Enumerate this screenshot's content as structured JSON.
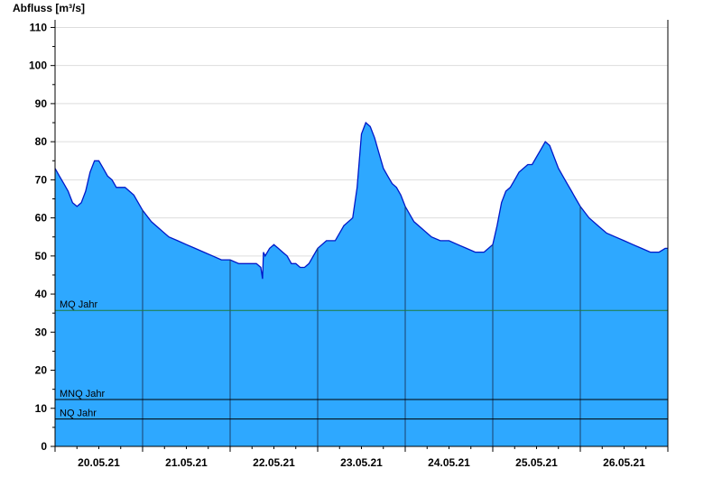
{
  "chart_data": {
    "type": "area",
    "ylabel": "Abfluss [m³/s]",
    "ylim": [
      0,
      112
    ],
    "yticks": [
      0,
      10,
      20,
      30,
      40,
      50,
      60,
      70,
      80,
      90,
      100,
      110
    ],
    "xlabels": [
      "20.05.21",
      "21.05.21",
      "22.05.21",
      "23.05.21",
      "24.05.21",
      "25.05.21",
      "26.05.21"
    ],
    "x": [
      0,
      0.05,
      0.1,
      0.15,
      0.2,
      0.25,
      0.3,
      0.35,
      0.4,
      0.45,
      0.5,
      0.55,
      0.6,
      0.65,
      0.7,
      0.75,
      0.8,
      0.85,
      0.9,
      0.95,
      1.0,
      1.1,
      1.2,
      1.3,
      1.4,
      1.5,
      1.6,
      1.7,
      1.8,
      1.9,
      2.0,
      2.1,
      2.2,
      2.3,
      2.35,
      2.37,
      2.38,
      2.4,
      2.45,
      2.5,
      2.55,
      2.6,
      2.65,
      2.7,
      2.75,
      2.8,
      2.85,
      2.9,
      3.0,
      3.1,
      3.2,
      3.3,
      3.4,
      3.45,
      3.5,
      3.55,
      3.6,
      3.65,
      3.7,
      3.75,
      3.8,
      3.85,
      3.9,
      3.95,
      4.0,
      4.1,
      4.2,
      4.3,
      4.4,
      4.5,
      4.6,
      4.7,
      4.8,
      4.9,
      5.0,
      5.05,
      5.1,
      5.15,
      5.2,
      5.25,
      5.3,
      5.35,
      5.4,
      5.45,
      5.5,
      5.55,
      5.6,
      5.65,
      5.7,
      5.75,
      5.8,
      5.85,
      5.9,
      5.95,
      6.0,
      6.1,
      6.2,
      6.3,
      6.4,
      6.5,
      6.6,
      6.7,
      6.8,
      6.9,
      6.97,
      7.0
    ],
    "series": [
      {
        "values": [
          73,
          71,
          69,
          67,
          64,
          63,
          64,
          67,
          72,
          75,
          75,
          73,
          71,
          70,
          68,
          68,
          68,
          67,
          66,
          64,
          62,
          59,
          57,
          55,
          54,
          53,
          52,
          51,
          50,
          49,
          49,
          48,
          48,
          48,
          47,
          44,
          51,
          50,
          52,
          53,
          52,
          51,
          50,
          48,
          48,
          47,
          47,
          48,
          52,
          54,
          54,
          58,
          60,
          68,
          82,
          85,
          84,
          81,
          77,
          73,
          71,
          69,
          68,
          66,
          63,
          59,
          57,
          55,
          54,
          54,
          53,
          52,
          51,
          51,
          53,
          58,
          64,
          67,
          68,
          70,
          72,
          73,
          74,
          74,
          76,
          78,
          80,
          79,
          76,
          73,
          71,
          69,
          67,
          65,
          63,
          60,
          58,
          56,
          55,
          54,
          53,
          52,
          51,
          51,
          52,
          52
        ]
      }
    ],
    "reference_lines": [
      {
        "label": "MQ Jahr",
        "value": 35.7,
        "color": "#1e7a3c"
      },
      {
        "label": "MNQ Jahr",
        "value": 12.3,
        "color": "#000000"
      },
      {
        "label": "NQ Jahr",
        "value": 7.2,
        "color": "#000000"
      }
    ],
    "grid": true,
    "colors": {
      "fill": "#2ea8ff",
      "line": "#0018c8",
      "grid": "#dddddd",
      "axis": "#000000",
      "day_divider": "#1a3f6b"
    }
  }
}
